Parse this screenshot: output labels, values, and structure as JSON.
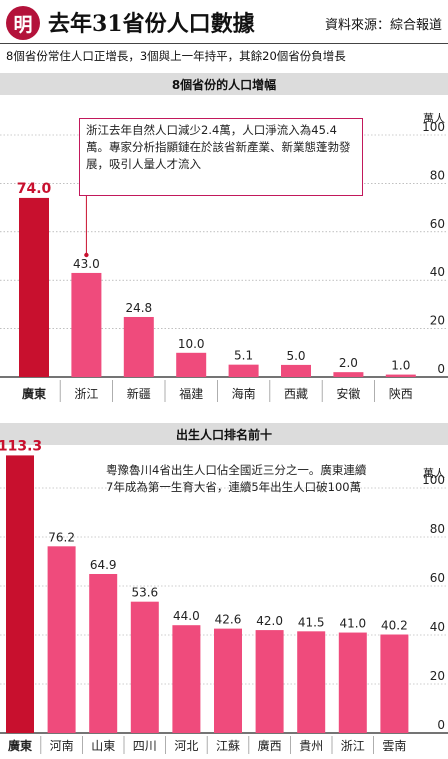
{
  "header": {
    "logo": "明",
    "title": "去年31省份人口數據",
    "source": "資料來源：綜合報道",
    "subtitle": "8個省份常住人口正增長，3個與上一年持平，其餘20個省份負增長"
  },
  "colors": {
    "highlight": "#c8102e",
    "bar": "#ef4b7c",
    "band": "#dcdcdc"
  },
  "chart_data": [
    {
      "type": "bar",
      "title": "8個省份的人口增幅",
      "ylabel": "萬人",
      "ylim": [
        0,
        100
      ],
      "yticks": [
        "0",
        "20",
        "40",
        "60",
        "80",
        "100"
      ],
      "categories": [
        "廣東",
        "浙江",
        "新疆",
        "福建",
        "海南",
        "西藏",
        "安徽",
        "陝西"
      ],
      "values": [
        74.0,
        43.0,
        24.8,
        10.0,
        5.1,
        5.0,
        2.0,
        1.0
      ],
      "value_labels": [
        "74.0",
        "43.0",
        "24.8",
        "10.0",
        "5.1",
        "5.0",
        "2.0",
        "1.0"
      ],
      "highlight_index": 0,
      "annotation": "浙江去年自然人口減少2.4萬，人口淨流入為45.4萬。專家分析指顯鏈在於該省新產業、新業態蓬勃發展，吸引人量人才流入"
    },
    {
      "type": "bar",
      "title": "出生人口排名前十",
      "ylabel": "萬人",
      "ylim": [
        0,
        100
      ],
      "yticks": [
        "0",
        "20",
        "40",
        "60",
        "80",
        "100"
      ],
      "categories": [
        "廣東",
        "河南",
        "山東",
        "四川",
        "河北",
        "江蘇",
        "廣西",
        "貴州",
        "浙江",
        "雲南"
      ],
      "values": [
        113.3,
        76.2,
        64.9,
        53.6,
        44.0,
        42.6,
        42.0,
        41.5,
        41.0,
        40.2
      ],
      "value_labels": [
        "113.3",
        "76.2",
        "64.9",
        "53.6",
        "44.0",
        "42.6",
        "42.0",
        "41.5",
        "41.0",
        "40.2"
      ],
      "highlight_index": 0,
      "annotation": "粵豫魯川4省出生人口佔全國近三分之一。廣東連續7年成為第一生育大省，連續5年出生人口破100萬"
    }
  ]
}
